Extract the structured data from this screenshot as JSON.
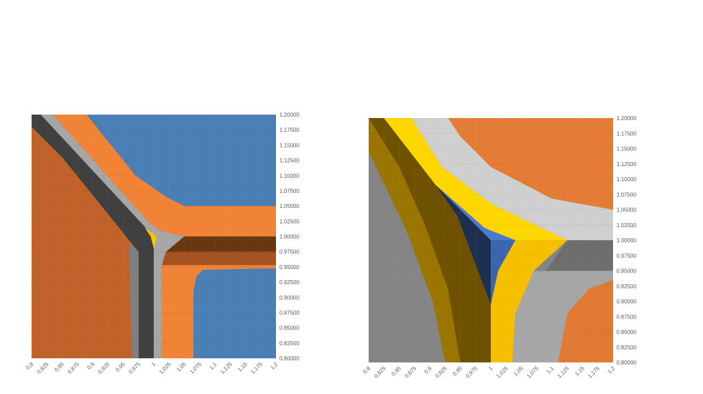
{
  "chart_data": [
    {
      "type": "heatmap",
      "subtype": "contour",
      "title": "",
      "xlabel": "",
      "ylabel": "",
      "xlim": [
        0.8,
        1.2
      ],
      "ylim": [
        0.8,
        1.2
      ],
      "grid": false,
      "x_ticks": [
        "0,8",
        "0,825",
        "0,85",
        "0,875",
        "0,9",
        "0,925",
        "0,95",
        "0,975",
        "1",
        "1,025",
        "1,05",
        "1,075",
        "1,1",
        "1,125",
        "1,15",
        "1,175",
        "1,2"
      ],
      "y_ticks": [
        "0.80000",
        "0.82500",
        "0.85000",
        "0.87500",
        "0.90000",
        "0.92500",
        "0.95000",
        "0.97500",
        "1.00000",
        "1.02500",
        "1.05000",
        "1.07500",
        "1.10000",
        "1.12500",
        "1.15000",
        "1.17500",
        "1.20000"
      ],
      "background_color": "#c0622a",
      "regions": [
        {
          "color": "#4a7fb5",
          "points": [
            [
              0.89,
              1.2
            ],
            [
              1.2,
              1.2
            ],
            [
              1.2,
              1.05
            ],
            [
              1.05,
              1.05
            ],
            [
              1.02,
              1.065
            ],
            [
              0.97,
              1.1
            ],
            [
              0.93,
              1.15
            ]
          ]
        },
        {
          "color": "#f08335",
          "points": [
            [
              0.835,
              1.2
            ],
            [
              0.89,
              1.2
            ],
            [
              0.93,
              1.15
            ],
            [
              0.97,
              1.1
            ],
            [
              1.02,
              1.065
            ],
            [
              1.05,
              1.05
            ],
            [
              1.2,
              1.05
            ],
            [
              1.2,
              1.0
            ],
            [
              1.05,
              1.0
            ],
            [
              1.01,
              1.01
            ],
            [
              0.99,
              1.025
            ]
          ]
        },
        {
          "color": "#a6a6a6",
          "points": [
            [
              0.815,
              1.2
            ],
            [
              0.835,
              1.2
            ],
            [
              0.99,
              1.025
            ],
            [
              1.01,
              1.01
            ],
            [
              1.05,
              1.0
            ],
            [
              1.0,
              1.0
            ]
          ]
        },
        {
          "color": "#404040",
          "points": [
            [
              0.8,
              1.2
            ],
            [
              0.815,
              1.2
            ],
            [
              1.0,
              1.0
            ],
            [
              1.0,
              0.8
            ],
            [
              0.975,
              0.8
            ],
            [
              0.975,
              0.975
            ],
            [
              0.85,
              1.13
            ],
            [
              0.8,
              1.18
            ]
          ]
        },
        {
          "color": "#808080",
          "points": [
            [
              0.965,
              0.8
            ],
            [
              0.975,
              0.8
            ],
            [
              0.975,
              0.975
            ],
            [
              0.96,
              0.99
            ],
            [
              0.96,
              0.95
            ]
          ]
        },
        {
          "color": "#a6a6a6",
          "points": [
            [
              1.0,
              1.0
            ],
            [
              1.05,
              1.0
            ],
            [
              1.02,
              0.975
            ],
            [
              1.013,
              0.95
            ],
            [
              1.013,
              0.8
            ],
            [
              1.0,
              0.8
            ]
          ]
        },
        {
          "color": "#6a3511",
          "points": [
            [
              1.05,
              1.0
            ],
            [
              1.2,
              1.0
            ],
            [
              1.2,
              0.975
            ],
            [
              1.02,
              0.975
            ]
          ]
        },
        {
          "color": "#a4521f",
          "points": [
            [
              1.02,
              0.975
            ],
            [
              1.2,
              0.975
            ],
            [
              1.2,
              0.953
            ],
            [
              1.013,
              0.953
            ]
          ]
        },
        {
          "color": "#f08335",
          "points": [
            [
              1.013,
              0.953
            ],
            [
              1.2,
              0.953
            ],
            [
              1.2,
              0.8
            ],
            [
              1.013,
              0.8
            ]
          ]
        },
        {
          "color": "#4a7fb5",
          "points": [
            [
              1.065,
              0.8
            ],
            [
              1.2,
              0.8
            ],
            [
              1.2,
              0.948
            ],
            [
              1.08,
              0.945
            ],
            [
              1.07,
              0.935
            ],
            [
              1.065,
              0.91
            ]
          ]
        },
        {
          "color": "#ffc000",
          "points": [
            [
              0.985,
              1.015
            ],
            [
              1.005,
              1.0
            ],
            [
              1.0,
              0.98
            ],
            [
              0.995,
              1.0
            ]
          ]
        }
      ]
    },
    {
      "type": "heatmap",
      "subtype": "contour",
      "title": "",
      "xlabel": "",
      "ylabel": "",
      "xlim": [
        0.8,
        1.2
      ],
      "ylim": [
        0.8,
        1.2
      ],
      "grid": false,
      "x_ticks": [
        "0,8",
        "0,825",
        "0,85",
        "0,875",
        "0,9",
        "0,925",
        "0,95",
        "0,975",
        "1",
        "1,025",
        "1,05",
        "1,075",
        "1,1",
        "1,125",
        "1,15",
        "1,175",
        "1,2"
      ],
      "y_ticks": [
        "0.80000",
        "0.82500",
        "0.85000",
        "0.87500",
        "0.90000",
        "0.92500",
        "0.95000",
        "0.97500",
        "1.00000",
        "1.02500",
        "1.05000",
        "1.07500",
        "1.10000",
        "1.12500",
        "1.15000",
        "1.17500",
        "1.20000"
      ],
      "background_color": "#858585",
      "regions": [
        {
          "color": "#6e6e6e",
          "points": [
            [
              1.125,
              1.0
            ],
            [
              1.2,
              1.0
            ],
            [
              1.2,
              0.95
            ],
            [
              1.09,
              0.95
            ]
          ]
        },
        {
          "color": "#a6a6a6",
          "points": [
            [
              1.09,
              0.95
            ],
            [
              1.2,
              0.95
            ],
            [
              1.2,
              0.8
            ],
            [
              1.035,
              0.8
            ],
            [
              1.04,
              0.88
            ],
            [
              1.07,
              0.95
            ]
          ]
        },
        {
          "color": "#e07a32",
          "points": [
            [
              1.11,
              0.8
            ],
            [
              1.2,
              0.8
            ],
            [
              1.2,
              0.935
            ],
            [
              1.16,
              0.92
            ],
            [
              1.125,
              0.88
            ]
          ]
        },
        {
          "color": "#e57c35",
          "points": [
            [
              0.93,
              1.2
            ],
            [
              1.2,
              1.2
            ],
            [
              1.2,
              1.05
            ],
            [
              1.1,
              1.068
            ],
            [
              1.0,
              1.12
            ],
            [
              0.95,
              1.17
            ]
          ]
        },
        {
          "color": "#cfcfcf",
          "points": [
            [
              0.87,
              1.2
            ],
            [
              0.93,
              1.2
            ],
            [
              0.95,
              1.17
            ],
            [
              1.0,
              1.12
            ],
            [
              1.1,
              1.068
            ],
            [
              1.2,
              1.05
            ],
            [
              1.2,
              1.0
            ],
            [
              1.125,
              1.0
            ],
            [
              1.0,
              1.06
            ],
            [
              0.92,
              1.12
            ]
          ]
        },
        {
          "color": "#9a7500",
          "points": [
            [
              0.8,
              1.2
            ],
            [
              0.825,
              1.2
            ],
            [
              0.91,
              1.09
            ],
            [
              1.0,
              1.0
            ],
            [
              1.0,
              0.8
            ],
            [
              0.925,
              0.8
            ],
            [
              0.905,
              0.9
            ],
            [
              0.86,
              1.02
            ],
            [
              0.8,
              1.145
            ]
          ]
        },
        {
          "color": "#6e5200",
          "points": [
            [
              0.8,
              1.2
            ],
            [
              0.825,
              1.2
            ],
            [
              0.91,
              1.09
            ],
            [
              1.0,
              1.0
            ],
            [
              1.0,
              0.8
            ],
            [
              0.95,
              0.8
            ],
            [
              0.93,
              0.92
            ],
            [
              0.89,
              1.03
            ],
            [
              0.85,
              1.12
            ]
          ]
        },
        {
          "color": "#ffd700",
          "points": [
            [
              0.825,
              1.2
            ],
            [
              0.87,
              1.2
            ],
            [
              0.92,
              1.12
            ],
            [
              1.0,
              1.06
            ],
            [
              1.125,
              1.0
            ],
            [
              1.04,
              1.0
            ],
            [
              0.99,
              1.02
            ],
            [
              0.91,
              1.09
            ]
          ]
        },
        {
          "color": "#1e3050",
          "points": [
            [
              0.91,
              1.09
            ],
            [
              1.0,
              1.0
            ],
            [
              1.0,
              0.895
            ],
            [
              0.975,
              0.96
            ],
            [
              0.945,
              1.04
            ]
          ]
        },
        {
          "color": "#4a7ad0",
          "points": [
            [
              0.91,
              1.09
            ],
            [
              0.99,
              1.02
            ],
            [
              1.04,
              1.0
            ],
            [
              1.0,
              1.0
            ]
          ]
        },
        {
          "color": "#3a66b0",
          "points": [
            [
              1.0,
              1.0
            ],
            [
              1.04,
              1.0
            ],
            [
              1.012,
              0.95
            ],
            [
              1.0,
              0.895
            ]
          ]
        },
        {
          "color": "#f5c000",
          "points": [
            [
              1.04,
              1.0
            ],
            [
              1.125,
              1.0
            ],
            [
              1.07,
              0.95
            ],
            [
              1.04,
              0.88
            ],
            [
              1.035,
              0.8
            ],
            [
              1.0,
              0.8
            ],
            [
              1.0,
              0.895
            ],
            [
              1.012,
              0.95
            ]
          ]
        }
      ]
    }
  ]
}
